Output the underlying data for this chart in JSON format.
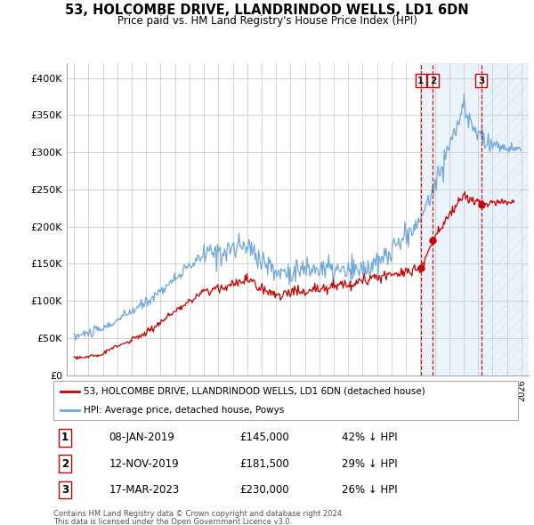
{
  "title": "53, HOLCOMBE DRIVE, LLANDRINDOD WELLS, LD1 6DN",
  "subtitle": "Price paid vs. HM Land Registry's House Price Index (HPI)",
  "ylim": [
    0,
    420000
  ],
  "yticks": [
    0,
    50000,
    100000,
    150000,
    200000,
    250000,
    300000,
    350000,
    400000
  ],
  "ytick_labels": [
    "£0",
    "£50K",
    "£100K",
    "£150K",
    "£200K",
    "£250K",
    "£300K",
    "£350K",
    "£400K"
  ],
  "hpi_color": "#6fa8dc",
  "price_color": "#cc0000",
  "vline_color": "#cc0000",
  "shade_color": "#d6e8f5",
  "shade_alpha": 0.5,
  "transactions": [
    {
      "label": "1",
      "date": "08-JAN-2019",
      "price": 145000,
      "pct": "42%",
      "x_year": 2019.03
    },
    {
      "label": "2",
      "date": "12-NOV-2019",
      "price": 181500,
      "pct": "29%",
      "x_year": 2019.87
    },
    {
      "label": "3",
      "date": "17-MAR-2023",
      "price": 230000,
      "pct": "26%",
      "x_year": 2023.21
    }
  ],
  "legend_label_red": "53, HOLCOMBE DRIVE, LLANDRINDOD WELLS, LD1 6DN (detached house)",
  "legend_label_blue": "HPI: Average price, detached house, Powys",
  "footer1": "Contains HM Land Registry data © Crown copyright and database right 2024.",
  "footer2": "This data is licensed under the Open Government Licence v3.0.",
  "xmin": 1994.5,
  "xmax": 2026.5
}
